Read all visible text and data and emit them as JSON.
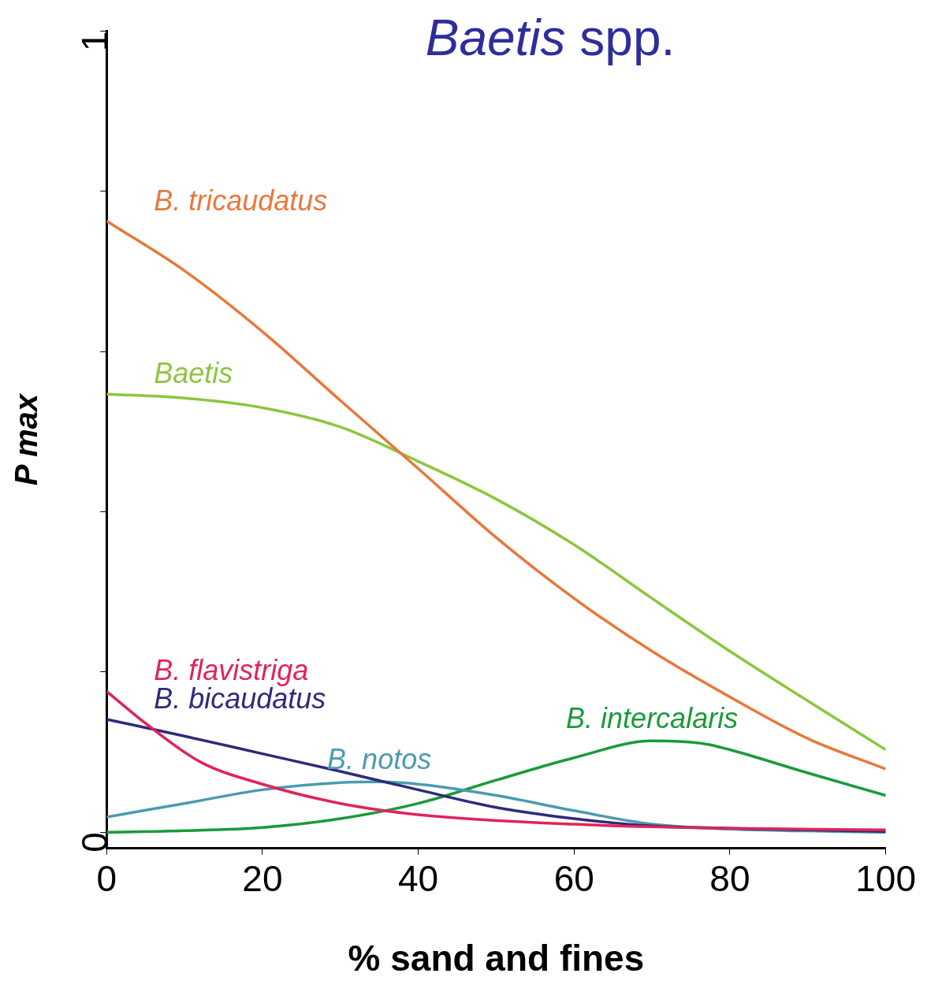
{
  "chart_data": {
    "type": "line",
    "title": "Baetis spp.",
    "xlabel": "% sand and fines",
    "ylabel": "P max",
    "xlim": [
      0,
      100
    ],
    "xticks": [
      0,
      20,
      40,
      60,
      80,
      100
    ],
    "ylim": [
      -0.02,
      1
    ],
    "yticks": [
      0,
      {
        "value": 0.2,
        "label": null
      },
      {
        "value": 0.4,
        "label": null
      },
      {
        "value": 0.6,
        "label": null
      },
      {
        "value": 0.8,
        "label": null
      },
      1
    ],
    "marker": "none",
    "series": [
      {
        "name": "B. tricaudatus",
        "color": "#e8783c",
        "x": [
          0,
          10,
          20,
          30,
          40,
          50,
          60,
          70,
          80,
          90,
          100
        ],
        "values": [
          0.763,
          0.701,
          0.625,
          0.539,
          0.454,
          0.368,
          0.292,
          0.226,
          0.169,
          0.117,
          0.079
        ]
      },
      {
        "name": "Baetis",
        "color": "#8cc63f",
        "x": [
          0,
          10,
          20,
          30,
          40,
          50,
          60,
          70,
          80,
          90,
          100
        ],
        "values": [
          0.547,
          0.542,
          0.53,
          0.506,
          0.463,
          0.416,
          0.359,
          0.292,
          0.226,
          0.164,
          0.103
        ]
      },
      {
        "name": "B. flavistriga",
        "color": "#e0245a",
        "x": [
          0,
          5,
          12,
          20,
          30,
          40,
          60,
          80,
          100
        ],
        "values": [
          0.176,
          0.136,
          0.088,
          0.06,
          0.036,
          0.022,
          0.01,
          0.005,
          0.003
        ]
      },
      {
        "name": "B. bicaudatus",
        "color": "#2e2a7a",
        "x": [
          0,
          10,
          20,
          30,
          40,
          50,
          60,
          70,
          80,
          100
        ],
        "values": [
          0.141,
          0.12,
          0.098,
          0.076,
          0.053,
          0.031,
          0.017,
          0.008,
          0.005,
          0.001
        ]
      },
      {
        "name": "B. notos",
        "color": "#4a9bb0",
        "x": [
          0,
          10,
          20,
          30,
          35,
          40,
          50,
          60,
          70,
          80,
          100
        ],
        "values": [
          0.019,
          0.036,
          0.053,
          0.062,
          0.063,
          0.06,
          0.046,
          0.027,
          0.01,
          0.004,
          0
        ]
      },
      {
        "name": "B. intercalaris",
        "color": "#1a9a3a",
        "x": [
          0,
          10,
          20,
          30,
          40,
          50,
          60,
          70,
          77,
          80,
          90,
          100
        ],
        "values": [
          0,
          0.002,
          0.006,
          0.017,
          0.036,
          0.065,
          0.093,
          0.114,
          0.11,
          0.103,
          0.074,
          0.046
        ]
      }
    ]
  }
}
